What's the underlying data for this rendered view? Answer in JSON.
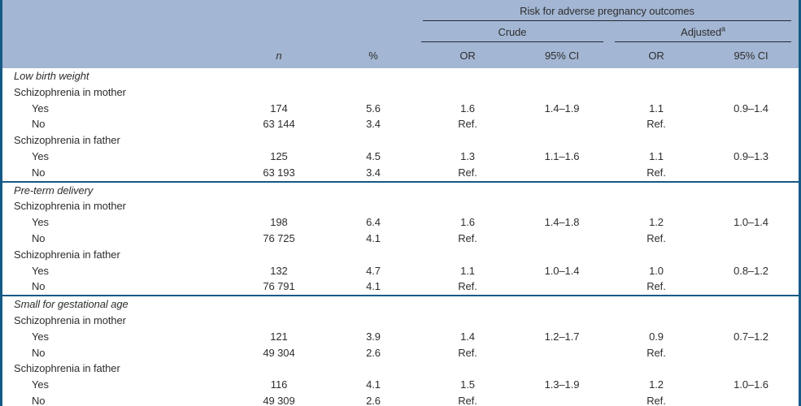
{
  "colors": {
    "header_bg": "#a3b6d3",
    "frame_border": "#155a86",
    "header_rule": "#222831",
    "text": "#2e2e2e"
  },
  "table": {
    "spanner": "Risk for adverse pregnancy outcomes",
    "crude_label": "Crude",
    "adjusted_label": "Adjusted",
    "adjusted_superscript": "a",
    "columns": {
      "n": "n",
      "pct": "%",
      "or": "OR",
      "ci": "95% CI"
    },
    "sections": [
      {
        "title": "Low birth weight",
        "groups": [
          {
            "label": "Schizophrenia in mother",
            "rows": [
              {
                "label": "Yes",
                "n": "174",
                "pct": "5.6",
                "crude_or": "1.6",
                "crude_ci": "1.4–1.9",
                "adj_or": "1.1",
                "adj_ci": "0.9–1.4"
              },
              {
                "label": "No",
                "n": "63 144",
                "pct": "3.4",
                "crude_or": "Ref.",
                "crude_ci": "",
                "adj_or": "Ref.",
                "adj_ci": ""
              }
            ]
          },
          {
            "label": "Schizophrenia in father",
            "rows": [
              {
                "label": "Yes",
                "n": "125",
                "pct": "4.5",
                "crude_or": "1.3",
                "crude_ci": "1.1–1.6",
                "adj_or": "1.1",
                "adj_ci": "0.9–1.3"
              },
              {
                "label": "No",
                "n": "63 193",
                "pct": "3.4",
                "crude_or": "Ref.",
                "crude_ci": "",
                "adj_or": "Ref.",
                "adj_ci": ""
              }
            ]
          }
        ]
      },
      {
        "title": "Pre-term delivery",
        "groups": [
          {
            "label": "Schizophrenia in mother",
            "rows": [
              {
                "label": "Yes",
                "n": "198",
                "pct": "6.4",
                "crude_or": "1.6",
                "crude_ci": "1.4–1.8",
                "adj_or": "1.2",
                "adj_ci": "1.0–1.4"
              },
              {
                "label": "No",
                "n": "76 725",
                "pct": "4.1",
                "crude_or": "Ref.",
                "crude_ci": "",
                "adj_or": "Ref.",
                "adj_ci": ""
              }
            ]
          },
          {
            "label": "Schizophrenia in father",
            "rows": [
              {
                "label": "Yes",
                "n": "132",
                "pct": "4.7",
                "crude_or": "1.1",
                "crude_ci": "1.0–1.4",
                "adj_or": "1.0",
                "adj_ci": "0.8–1.2"
              },
              {
                "label": "No",
                "n": "76 791",
                "pct": "4.1",
                "crude_or": "Ref.",
                "crude_ci": "",
                "adj_or": "Ref.",
                "adj_ci": ""
              }
            ]
          }
        ]
      },
      {
        "title": "Small for gestational age",
        "groups": [
          {
            "label": "Schizophrenia in mother",
            "rows": [
              {
                "label": "Yes",
                "n": "121",
                "pct": "3.9",
                "crude_or": "1.4",
                "crude_ci": "1.2–1.7",
                "adj_or": "0.9",
                "adj_ci": "0.7–1.2"
              },
              {
                "label": "No",
                "n": "49 304",
                "pct": "2.6",
                "crude_or": "Ref.",
                "crude_ci": "",
                "adj_or": "Ref.",
                "adj_ci": ""
              }
            ]
          },
          {
            "label": "Schizophrenia in father",
            "rows": [
              {
                "label": "Yes",
                "n": "116",
                "pct": "4.1",
                "crude_or": "1.5",
                "crude_ci": "1.3–1.9",
                "adj_or": "1.2",
                "adj_ci": "1.0–1.6"
              },
              {
                "label": "No",
                "n": "49 309",
                "pct": "2.6",
                "crude_or": "Ref.",
                "crude_ci": "",
                "adj_or": "Ref.",
                "adj_ci": ""
              }
            ]
          }
        ]
      }
    ]
  }
}
